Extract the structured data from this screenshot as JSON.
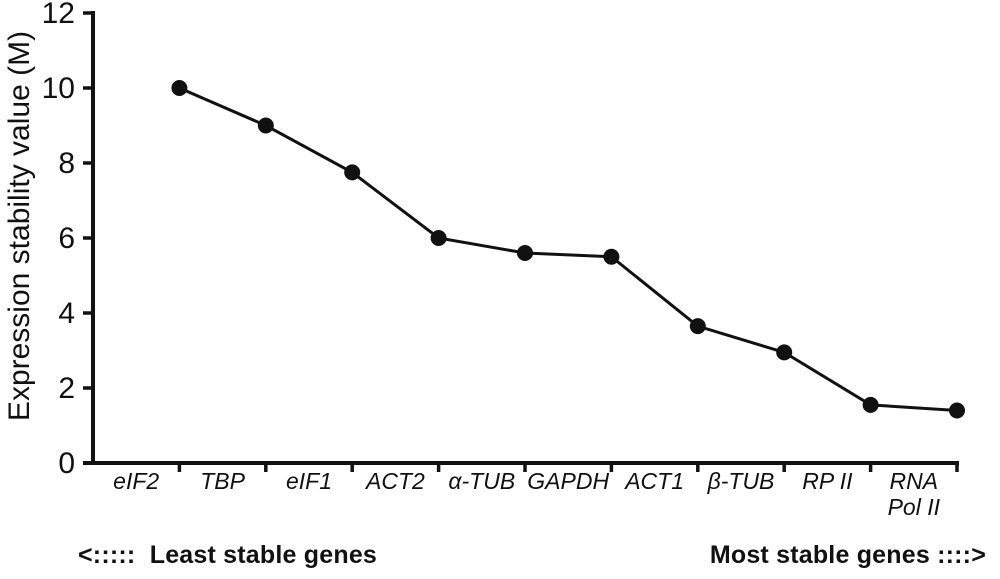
{
  "figure": {
    "background": "#ffffff",
    "ink_color": "#111111"
  },
  "chart_data": {
    "type": "line",
    "title": "",
    "xlabel": "",
    "ylabel": "Expression stability value (M)",
    "categories": [
      "eIF2",
      "TBP",
      "eIF1",
      "ACT2",
      "α-TUB",
      "GAPDH",
      "ACT1",
      "β-TUB",
      "RP II",
      "RNA Pol II"
    ],
    "x_tick_label_lines": [
      [
        "eIF2"
      ],
      [
        "TBP"
      ],
      [
        "eIF1"
      ],
      [
        "ACT2"
      ],
      [
        "α-TUB"
      ],
      [
        "GAPDH"
      ],
      [
        "ACT1"
      ],
      [
        "β-TUB"
      ],
      [
        "RP II"
      ],
      [
        "RNA",
        "Pol II"
      ]
    ],
    "values": [
      10.0,
      9.0,
      7.75,
      6.0,
      5.6,
      5.5,
      3.65,
      2.95,
      1.55,
      1.4
    ],
    "ylim": [
      0,
      12
    ],
    "yticks": [
      0,
      2,
      4,
      6,
      8,
      10,
      12
    ],
    "grid": false,
    "legend_position": "none",
    "marker": "circle",
    "marker_color": "#111111",
    "line_color": "#111111",
    "annotations": {
      "left": "<:::::  Least stable genes",
      "right": "Most stable genes ::::>"
    }
  }
}
